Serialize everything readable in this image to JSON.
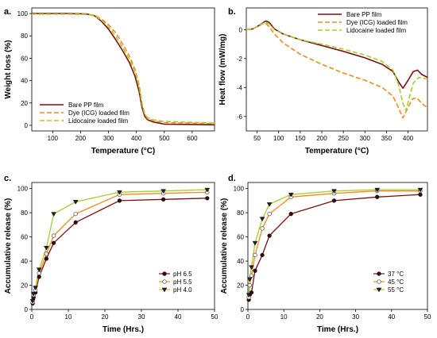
{
  "chart_data": [
    {
      "panel_label": "a.",
      "type": "line",
      "xlabel": "Temperature (°C)",
      "ylabel": "Weight loss (%)",
      "xlim": [
        25,
        680
      ],
      "ylim": [
        -5,
        105
      ],
      "xticks": [
        100,
        200,
        300,
        400,
        500,
        600
      ],
      "yticks": [
        0,
        20,
        40,
        60,
        80,
        100
      ],
      "legend_position": "bottom-left",
      "series": [
        {
          "name": "Bare PP film",
          "color": "#7a1010",
          "dash": "solid",
          "points": [
            [
              25,
              100
            ],
            [
              150,
              100
            ],
            [
              220,
              99.7
            ],
            [
              250,
              98
            ],
            [
              275,
              93
            ],
            [
              300,
              86
            ],
            [
              325,
              77
            ],
            [
              350,
              67
            ],
            [
              375,
              56
            ],
            [
              395,
              44
            ],
            [
              410,
              30
            ],
            [
              420,
              16
            ],
            [
              430,
              8
            ],
            [
              440,
              5
            ],
            [
              460,
              3
            ],
            [
              500,
              1
            ],
            [
              680,
              0.5
            ]
          ]
        },
        {
          "name": "Dye (ICG) loaded film",
          "color": "#f08a24",
          "dash": "dashed",
          "points": [
            [
              25,
              99.5
            ],
            [
              150,
              99.5
            ],
            [
              220,
              99.3
            ],
            [
              250,
              98.5
            ],
            [
              275,
              95
            ],
            [
              300,
              90
            ],
            [
              325,
              83
            ],
            [
              350,
              73
            ],
            [
              375,
              62
            ],
            [
              395,
              50
            ],
            [
              410,
              36
            ],
            [
              420,
              20
            ],
            [
              430,
              10
            ],
            [
              440,
              6
            ],
            [
              460,
              4
            ],
            [
              500,
              2.5
            ],
            [
              680,
              1.5
            ]
          ]
        },
        {
          "name": "Lidocaine loaded film",
          "color": "#a8cc2c",
          "dash": "dashed",
          "points": [
            [
              25,
              99.5
            ],
            [
              150,
              99.5
            ],
            [
              220,
              99.2
            ],
            [
              250,
              98
            ],
            [
              275,
              94
            ],
            [
              300,
              88
            ],
            [
              325,
              80
            ],
            [
              350,
              70
            ],
            [
              375,
              59
            ],
            [
              395,
              48
            ],
            [
              410,
              34
            ],
            [
              420,
              19
            ],
            [
              430,
              10
            ],
            [
              440,
              7
            ],
            [
              460,
              5
            ],
            [
              500,
              3.5
            ],
            [
              680,
              2
            ]
          ]
        }
      ]
    },
    {
      "panel_label": "b.",
      "type": "line",
      "xlabel": "Temperature (°C)",
      "ylabel": "Heat flow (mW/mg)",
      "xlim": [
        25,
        445
      ],
      "ylim": [
        -7,
        1.5
      ],
      "xticks": [
        50,
        100,
        150,
        200,
        250,
        300,
        350,
        400
      ],
      "yticks": [
        -6,
        -4,
        -2,
        0
      ],
      "legend_position": "top-right",
      "series": [
        {
          "name": "Bare PP film",
          "color": "#7a1010",
          "dash": "solid",
          "points": [
            [
              25,
              0
            ],
            [
              40,
              0.05
            ],
            [
              55,
              0.3
            ],
            [
              70,
              0.6
            ],
            [
              78,
              0.5
            ],
            [
              90,
              0.05
            ],
            [
              110,
              -0.3
            ],
            [
              150,
              -0.7
            ],
            [
              200,
              -1.1
            ],
            [
              250,
              -1.5
            ],
            [
              300,
              -1.95
            ],
            [
              340,
              -2.4
            ],
            [
              365,
              -2.9
            ],
            [
              378,
              -3.6
            ],
            [
              388,
              -4.05
            ],
            [
              398,
              -3.6
            ],
            [
              412,
              -2.9
            ],
            [
              422,
              -2.8
            ],
            [
              432,
              -3.1
            ],
            [
              445,
              -3.3
            ]
          ]
        },
        {
          "name": "Dye (ICG) loaded film",
          "color": "#f08a24",
          "dash": "dashed",
          "points": [
            [
              25,
              0
            ],
            [
              40,
              0.05
            ],
            [
              55,
              0.3
            ],
            [
              68,
              0.5
            ],
            [
              78,
              0.2
            ],
            [
              90,
              -0.3
            ],
            [
              110,
              -0.9
            ],
            [
              150,
              -1.7
            ],
            [
              200,
              -2.4
            ],
            [
              250,
              -3
            ],
            [
              300,
              -3.5
            ],
            [
              340,
              -4
            ],
            [
              365,
              -4.6
            ],
            [
              378,
              -5.4
            ],
            [
              388,
              -6.1
            ],
            [
              398,
              -5.5
            ],
            [
              410,
              -4.8
            ],
            [
              420,
              -4.7
            ],
            [
              432,
              -5.1
            ],
            [
              445,
              -5.4
            ]
          ]
        },
        {
          "name": "Lidocaine loaded film",
          "color": "#a8cc2c",
          "dash": "dashed",
          "points": [
            [
              25,
              0
            ],
            [
              40,
              0.05
            ],
            [
              55,
              0.25
            ],
            [
              68,
              0.5
            ],
            [
              78,
              0.4
            ],
            [
              90,
              0
            ],
            [
              110,
              -0.3
            ],
            [
              150,
              -0.7
            ],
            [
              200,
              -1.0
            ],
            [
              250,
              -1.35
            ],
            [
              300,
              -1.75
            ],
            [
              340,
              -2.2
            ],
            [
              365,
              -2.8
            ],
            [
              378,
              -3.8
            ],
            [
              388,
              -5.1
            ],
            [
              395,
              -5.6
            ],
            [
              402,
              -4.8
            ],
            [
              412,
              -3.7
            ],
            [
              425,
              -3.3
            ],
            [
              445,
              -3.4
            ]
          ]
        }
      ]
    },
    {
      "panel_label": "c.",
      "type": "line",
      "xlabel": "Time (Hrs.)",
      "ylabel": "Accumulative release (%)",
      "xlim": [
        0,
        50
      ],
      "ylim": [
        0,
        105
      ],
      "xticks": [
        0,
        10,
        20,
        30,
        40,
        50
      ],
      "yticks": [
        0,
        20,
        40,
        60,
        80,
        100
      ],
      "legend_position": "bottom-right",
      "x": [
        0.25,
        0.5,
        1,
        2,
        4,
        6,
        12,
        24,
        36,
        48
      ],
      "series": [
        {
          "name": "pH 6.5",
          "color": "#7a1010",
          "marker": "circle-filled",
          "values": [
            5,
            10,
            14,
            27,
            42,
            55,
            72,
            90,
            91,
            92
          ]
        },
        {
          "name": "pH 5.5",
          "color": "#f08a24",
          "marker": "circle-open",
          "values": [
            6,
            12,
            16,
            30,
            46,
            61,
            79,
            95,
            96,
            97
          ]
        },
        {
          "name": "pH 4.0",
          "color": "#a8cc2c",
          "marker": "triangle-down",
          "values": [
            7,
            13,
            18,
            33,
            51,
            79,
            89,
            97,
            98,
            99
          ]
        }
      ]
    },
    {
      "panel_label": "d.",
      "type": "line",
      "xlabel": "Time (Hrs.)",
      "ylabel": "Accumulative release (%)",
      "xlim": [
        0,
        50
      ],
      "ylim": [
        0,
        105
      ],
      "xticks": [
        0,
        10,
        20,
        30,
        40,
        50
      ],
      "yticks": [
        0,
        20,
        40,
        60,
        80,
        100
      ],
      "legend_position": "bottom-right",
      "x": [
        0.25,
        0.5,
        1,
        2,
        4,
        6,
        12,
        24,
        36,
        48
      ],
      "series": [
        {
          "name": "37 °C",
          "color": "#7a1010",
          "marker": "circle-filled",
          "values": [
            8,
            12,
            14,
            32,
            45,
            61,
            79,
            90,
            93,
            95
          ]
        },
        {
          "name": "45 °C",
          "color": "#f08a24",
          "marker": "circle-open",
          "values": [
            10,
            20,
            28,
            45,
            67,
            79,
            93,
            96,
            98,
            98
          ]
        },
        {
          "name": "55 °C",
          "color": "#a8cc2c",
          "marker": "triangle-down",
          "values": [
            12,
            25,
            35,
            55,
            75,
            87,
            95,
            98,
            99,
            99
          ]
        }
      ]
    }
  ]
}
